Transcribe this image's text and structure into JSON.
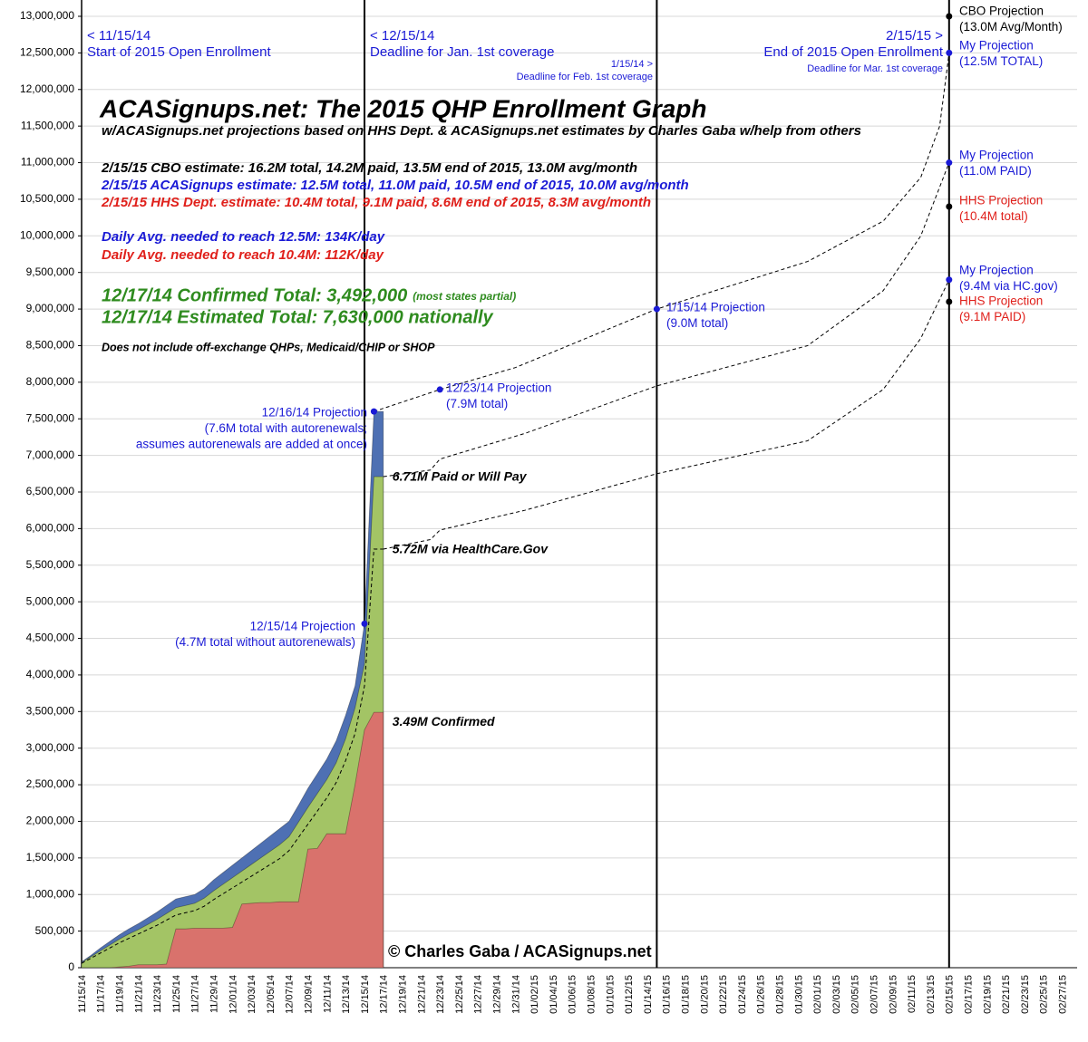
{
  "chart_data": {
    "type": "area",
    "title": "ACASignups.net: The 2015 QHP Enrollment Graph",
    "subtitle": "w/ACASignups.net projections based on HHS Dept. & ACASignups.net estimates by Charles Gaba w/help from others",
    "categories": [
      "11/15/14",
      null,
      "11/17/14",
      null,
      "11/19/14",
      null,
      "11/21/14",
      null,
      "11/23/14",
      null,
      "11/25/14",
      null,
      "11/27/14",
      null,
      "11/29/14",
      null,
      "12/01/14",
      null,
      "12/03/14",
      null,
      "12/05/14",
      null,
      "12/07/14",
      null,
      "12/09/14",
      null,
      "12/11/14",
      null,
      "12/13/14",
      null,
      "12/15/14",
      null,
      "12/17/14",
      null,
      "12/19/14",
      null,
      "12/21/14",
      null,
      "12/23/14",
      null,
      "12/25/14",
      null,
      "12/27/14",
      null,
      "12/29/14",
      null,
      "12/31/14",
      null,
      "01/02/15",
      null,
      "01/04/15",
      null,
      "01/06/15",
      null,
      "01/08/15",
      null,
      "01/10/15",
      null,
      "01/12/15",
      null,
      "01/14/15",
      null,
      "01/16/15",
      null,
      "01/18/15",
      null,
      "01/20/15",
      null,
      "01/22/15",
      null,
      "01/24/15",
      null,
      "01/26/15",
      null,
      "01/28/15",
      null,
      "01/30/15",
      null,
      "02/01/15",
      null,
      "02/03/15",
      null,
      "02/05/15",
      null,
      "02/07/15",
      null,
      "02/09/15",
      null,
      "02/11/15",
      null,
      "02/13/15",
      null,
      "02/15/15",
      null,
      "02/17/15",
      null,
      "02/19/15",
      null,
      "02/21/15",
      null,
      "02/23/15",
      null,
      "02/25/15",
      null,
      "02/27/15",
      null
    ],
    "series": [
      {
        "kind": "area",
        "color": "#4e70b3",
        "values": [
          80000,
          170000,
          270000,
          360000,
          450000,
          530000,
          600000,
          680000,
          760000,
          850000,
          940000,
          970000,
          1000000,
          1080000,
          1200000,
          1300000,
          1400000,
          1500000,
          1600000,
          1700000,
          1800000,
          1900000,
          2000000,
          2220000,
          2450000,
          2650000,
          2850000,
          3100000,
          3450000,
          3850000,
          4700000,
          7600000,
          7600000,
          null,
          null,
          null,
          null,
          null,
          null,
          null,
          null,
          null,
          null,
          null,
          null,
          null,
          null,
          null,
          null,
          null,
          null,
          null,
          null,
          null,
          null,
          null,
          null,
          null,
          null,
          null,
          null,
          null,
          null,
          null,
          null,
          null,
          null,
          null,
          null,
          null,
          null,
          null,
          null,
          null,
          null,
          null,
          null,
          null,
          null,
          null,
          null,
          null,
          null,
          null,
          null,
          null,
          null,
          null,
          null,
          null,
          null,
          null,
          null,
          null,
          null,
          null,
          null,
          null,
          null,
          null,
          null,
          null,
          null,
          null,
          null,
          null
        ]
      },
      {
        "kind": "area",
        "color": "#a3c465",
        "label": "6.71M Paid or Will Pay",
        "values": [
          70000,
          150000,
          230000,
          310000,
          390000,
          460000,
          520000,
          590000,
          660000,
          740000,
          820000,
          850000,
          880000,
          950000,
          1050000,
          1140000,
          1230000,
          1320000,
          1410000,
          1500000,
          1590000,
          1680000,
          1790000,
          1990000,
          2190000,
          2380000,
          2570000,
          2800000,
          3130000,
          3550000,
          4150000,
          6710000,
          6710000,
          null,
          null,
          null,
          null,
          null,
          null,
          null,
          null,
          null,
          null,
          null,
          null,
          null,
          null,
          null,
          null,
          null,
          null,
          null,
          null,
          null,
          null,
          null,
          null,
          null,
          null,
          null,
          null,
          null,
          null,
          null,
          null,
          null,
          null,
          null,
          null,
          null,
          null,
          null,
          null,
          null,
          null,
          null,
          null,
          null,
          null,
          null,
          null,
          null,
          null,
          null,
          null,
          null,
          null,
          null,
          null,
          null,
          null,
          null,
          null,
          null,
          null,
          null,
          null,
          null,
          null,
          null,
          null,
          null,
          null,
          null,
          null,
          null
        ]
      },
      {
        "kind": "line",
        "dash": true,
        "color": "#000000",
        "label": "5.72M via HealthCare.Gov",
        "values": [
          60000,
          130000,
          200000,
          270000,
          340000,
          400000,
          460000,
          520000,
          580000,
          650000,
          720000,
          750000,
          780000,
          840000,
          930000,
          1010000,
          1090000,
          1170000,
          1250000,
          1330000,
          1410000,
          1490000,
          1600000,
          1780000,
          1960000,
          2140000,
          2320000,
          2530000,
          2830000,
          3200000,
          3850000,
          5720000,
          5720000,
          null,
          null,
          null,
          null,
          null,
          null,
          null,
          null,
          null,
          null,
          null,
          null,
          null,
          null,
          null,
          null,
          null,
          null,
          null,
          null,
          null,
          null,
          null,
          null,
          null,
          null,
          null,
          null,
          null,
          null,
          null,
          null,
          null,
          null,
          null,
          null,
          null,
          null,
          null,
          null,
          null,
          null,
          null,
          null,
          null,
          null,
          null,
          null,
          null,
          null,
          null,
          null,
          null,
          null,
          null,
          null,
          null,
          null,
          null,
          null,
          null,
          null,
          null,
          null,
          null,
          null,
          null,
          null,
          null,
          null,
          null,
          null,
          null
        ]
      },
      {
        "kind": "area",
        "color": "#d9726c",
        "label": "3.49M Confirmed",
        "values": [
          0,
          0,
          0,
          0,
          10000,
          20000,
          40000,
          40000,
          40000,
          50000,
          530000,
          530000,
          540000,
          540000,
          540000,
          540000,
          550000,
          870000,
          880000,
          890000,
          890000,
          900000,
          900000,
          900000,
          1620000,
          1630000,
          1830000,
          1830000,
          1830000,
          2500000,
          3250000,
          3490000,
          3490000,
          null,
          null,
          null,
          null,
          null,
          null,
          null,
          null,
          null,
          null,
          null,
          null,
          null,
          null,
          null,
          null,
          null,
          null,
          null,
          null,
          null,
          null,
          null,
          null,
          null,
          null,
          null,
          null,
          null,
          null,
          null,
          null,
          null,
          null,
          null,
          null,
          null,
          null,
          null,
          null,
          null,
          null,
          null,
          null,
          null,
          null,
          null,
          null,
          null,
          null,
          null,
          null,
          null,
          null,
          null,
          null,
          null,
          null,
          null,
          null,
          null,
          null,
          null,
          null,
          null,
          null,
          null,
          null,
          null,
          null,
          null,
          null,
          null
        ]
      }
    ],
    "projections": [
      {
        "color": "#000000",
        "x": [
          "12/16/14",
          "12/23/14",
          "12/31/14",
          "01/15/15",
          "01/31/15",
          "02/08/15",
          "02/12/15",
          "02/14/15",
          "02/15/15"
        ],
        "values": [
          7600000,
          7900000,
          8200000,
          9000000,
          9650000,
          10200000,
          10800000,
          11500000,
          12500000
        ]
      },
      {
        "color": "#000000",
        "x": [
          "12/17/14",
          "12/22/14",
          "12/23/14",
          "01/01/15",
          "01/15/15",
          "01/31/15",
          "02/08/15",
          "02/12/15",
          "02/15/15"
        ],
        "values": [
          6710000,
          6800000,
          6950000,
          7300000,
          7950000,
          8500000,
          9250000,
          10000000,
          11000000
        ]
      },
      {
        "color": "#000000",
        "x": [
          "12/17/14",
          "12/22/14",
          "12/23/14",
          "01/01/15",
          "01/15/15",
          "01/31/15",
          "02/08/15",
          "02/12/15",
          "02/15/15"
        ],
        "values": [
          5720000,
          5850000,
          5980000,
          6250000,
          6750000,
          7200000,
          7900000,
          8600000,
          9400000
        ]
      }
    ],
    "markers": [
      {
        "x": "12/15/14",
        "value": 4700000,
        "color": "#1a1ad6",
        "label_color": "#1a1ad6",
        "label": [
          "12/15/14 Projection",
          "(4.7M total without autorenewals)"
        ]
      },
      {
        "x": "12/16/14",
        "value": 7600000,
        "color": "#1a1ad6",
        "label_color": "#1a1ad6",
        "label": [
          "12/16/14 Projection",
          "(7.6M total with autorenewals;",
          "assumes autorenewals are added at once)"
        ]
      },
      {
        "x": "12/23/14",
        "value": 7900000,
        "color": "#1a1ad6",
        "label_color": "#1a1ad6",
        "label": [
          "12/23/14 Projection",
          "(7.9M total)"
        ]
      },
      {
        "x": "01/15/15",
        "value": 9000000,
        "color": "#1a1ad6",
        "label_color": "#1a1ad6",
        "label": [
          "1/15/14 Projection",
          "(9.0M total)"
        ]
      },
      {
        "x": "02/15/15",
        "value": 13000000,
        "color": "#000000",
        "label_color": "#000000",
        "label": [
          "CBO Projection",
          "(13.0M Avg/Month)"
        ]
      },
      {
        "x": "02/15/15",
        "value": 12500000,
        "color": "#1a1ad6",
        "label_color": "#1a1ad6",
        "label": [
          "My Projection",
          "(12.5M TOTAL)"
        ]
      },
      {
        "x": "02/15/15",
        "value": 11000000,
        "color": "#1a1ad6",
        "label_color": "#1a1ad6",
        "label": [
          "My Projection",
          "(11.0M PAID)"
        ]
      },
      {
        "x": "02/15/15",
        "value": 10400000,
        "color": "#000000",
        "label_color": "#e0201b",
        "label": [
          "HHS Projection",
          "(10.4M total)"
        ]
      },
      {
        "x": "02/15/15",
        "value": 9400000,
        "color": "#1a1ad6",
        "label_color": "#1a1ad6",
        "label": [
          "My Projection",
          "(9.4M via HC.gov)"
        ]
      },
      {
        "x": "02/15/15",
        "value": 9100000,
        "color": "#000000",
        "label_color": "#e0201b",
        "label": [
          "HHS Projection",
          "(9.1M PAID)"
        ]
      }
    ],
    "event_lines": [
      "12/15/14",
      "01/15/15",
      "02/15/15"
    ],
    "headers": [
      [
        "< 11/15/14",
        "Start of 2015 Open Enrollment"
      ],
      [
        "< 12/15/14",
        "Deadline for Jan. 1st coverage"
      ],
      [
        "1/15/14 >",
        "Deadline for Feb. 1st coverage"
      ],
      [
        "2/15/15 >",
        "End of 2015 Open Enrollment",
        "Deadline for Mar. 1st coverage"
      ]
    ],
    "estimates": [
      {
        "text": "2/15/15 CBO estimate: 16.2M total, 14.2M paid, 13.5M end of 2015, 13.0M avg/month",
        "color": "#000000"
      },
      {
        "text": "2/15/15 ACASignups estimate: 12.5M total, 11.0M paid, 10.5M end of 2015, 10.0M avg/month",
        "color": "#1a1ad6"
      },
      {
        "text": "2/15/15 HHS Dept. estimate: 10.4M total, 9.1M paid, 8.6M end of 2015, 8.3M avg/month",
        "color": "#e0201b"
      }
    ],
    "daily": [
      {
        "text": "Daily Avg. needed to reach 12.5M: 134K/day",
        "color": "#1a1ad6"
      },
      {
        "text": "Daily Avg. needed to reach 10.4M: 112K/day",
        "color": "#e0201b"
      }
    ],
    "totals": [
      {
        "text": "12/17/14 Confirmed Total: 3,492,000",
        "note": "(most states partial)"
      },
      {
        "text": "12/17/14 Estimated Total: 7,630,000 nationally"
      }
    ],
    "totals_color": "#2e8b1e",
    "disclaimer": "Does not include off-exchange QHPs, Medicaid/CHIP or SHOP",
    "copyright": "© Charles Gaba / ACASignups.net",
    "ylim": [
      0,
      13000000
    ],
    "yticks": [
      0,
      {
        "value": 500000,
        "label": "500,000"
      },
      {
        "value": 1000000,
        "label": "1,000,000"
      },
      {
        "value": 1500000,
        "label": "1,500,000"
      },
      {
        "value": 2000000,
        "label": "2,000,000"
      },
      {
        "value": 2500000,
        "label": "2,500,000"
      },
      {
        "value": 3000000,
        "label": "3,000,000"
      },
      {
        "value": 3500000,
        "label": "3,500,000"
      },
      {
        "value": 4000000,
        "label": "4,000,000"
      },
      {
        "value": 4500000,
        "label": "4,500,000"
      },
      {
        "value": 5000000,
        "label": "5,000,000"
      },
      {
        "value": 5500000,
        "label": "5,500,000"
      },
      {
        "value": 6000000,
        "label": "6,000,000"
      },
      {
        "value": 6500000,
        "label": "6,500,000"
      },
      {
        "value": 7000000,
        "label": "7,000,000"
      },
      {
        "value": 7500000,
        "label": "7,500,000"
      },
      {
        "value": 8000000,
        "label": "8,000,000"
      },
      {
        "value": 8500000,
        "label": "8,500,000"
      },
      {
        "value": 9000000,
        "label": "9,000,000"
      },
      {
        "value": 9500000,
        "label": "9,500,000"
      },
      {
        "value": 10000000,
        "label": "10,000,000"
      },
      {
        "value": 10500000,
        "label": "10,500,000"
      },
      {
        "value": 11000000,
        "label": "11,000,000"
      },
      {
        "value": 11500000,
        "label": "11,500,000"
      },
      {
        "value": 12000000,
        "label": "12,000,000"
      },
      {
        "value": 12500000,
        "label": "12,500,000"
      },
      {
        "value": 13000000,
        "label": "13,000,000"
      }
    ],
    "grid": true
  }
}
